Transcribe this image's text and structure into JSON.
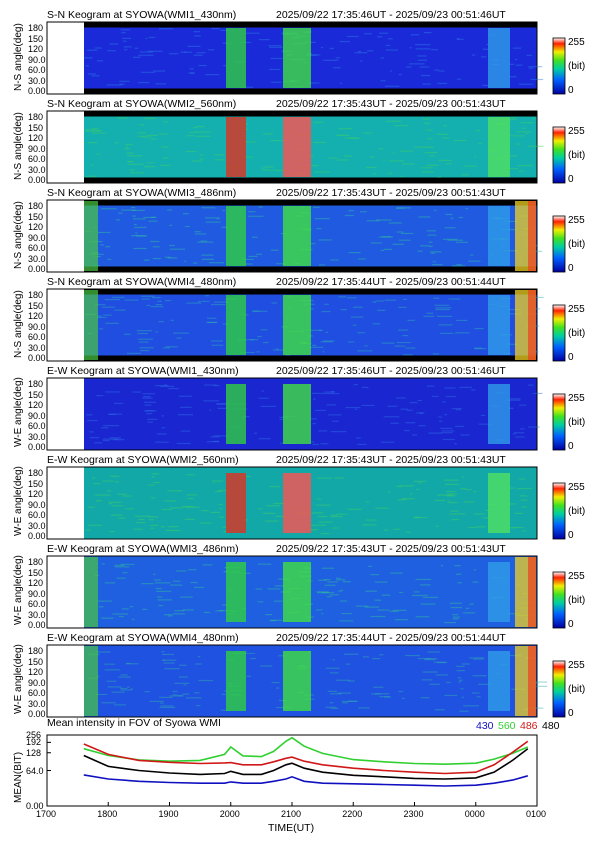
{
  "keograms": [
    {
      "title": "S-N Keogram at SYOWA(WMI1_430nm)",
      "time_range": "2025/09/22 17:35:46UT - 2025/09/23 00:51:46UT",
      "ylabel": "N-S angle(deg)",
      "kind": "NS",
      "base": "#1a2ad8",
      "noise": "#2f7ce8",
      "edge": "none"
    },
    {
      "title": "S-N Keogram at SYOWA(WMI2_560nm)",
      "time_range": "2025/09/22 17:35:43UT - 2025/09/23 00:51:43UT",
      "ylabel": "N-S angle(deg)",
      "kind": "NS",
      "base": "#14b0b0",
      "noise": "#3fd060",
      "edge": "none"
    },
    {
      "title": "S-N Keogram at SYOWA(WMI3_486nm)",
      "time_range": "2025/09/22 17:35:43UT - 2025/09/23 00:51:43UT",
      "ylabel": "N-S angle(deg)",
      "kind": "NS",
      "base": "#1f5ae0",
      "noise": "#30c0a0",
      "edge": "glow"
    },
    {
      "title": "S-N Keogram at SYOWA(WMI4_480nm)",
      "time_range": "2025/09/22 17:35:44UT - 2025/09/23 00:51:44UT",
      "ylabel": "N-S angle(deg)",
      "kind": "NS",
      "base": "#1f4ee0",
      "noise": "#2fb0b8",
      "edge": "glow"
    },
    {
      "title": "E-W Keogram at SYOWA(WMI1_430nm)",
      "time_range": "2025/09/22 17:35:46UT - 2025/09/23 00:51:46UT",
      "ylabel": "W-E angle(deg)",
      "kind": "WE",
      "base": "#1a26d0",
      "noise": "#2f70e8",
      "edge": "none"
    },
    {
      "title": "E-W Keogram at SYOWA(WMI2_560nm)",
      "time_range": "2025/09/22 17:35:43UT - 2025/09/23 00:51:43UT",
      "ylabel": "W-E angle(deg)",
      "kind": "WE",
      "base": "#12a8a8",
      "noise": "#40d060",
      "edge": "none"
    },
    {
      "title": "E-W Keogram at SYOWA(WMI3_486nm)",
      "time_range": "2025/09/22 17:35:43UT - 2025/09/23 00:51:43UT",
      "ylabel": "W-E angle(deg)",
      "kind": "WE",
      "base": "#1f60e0",
      "noise": "#30c098",
      "edge": "glow"
    },
    {
      "title": "E-W Keogram at SYOWA(WMI4_480nm)",
      "time_range": "2025/09/22 17:35:44UT - 2025/09/23 00:51:44UT",
      "ylabel": "W-E angle(deg)",
      "kind": "WE",
      "base": "#1f52e0",
      "noise": "#30b0b0",
      "edge": "glow"
    }
  ],
  "keogram_yticks": [
    "180",
    "150",
    "120",
    "90.0",
    "60.0",
    "30.0",
    "0.00"
  ],
  "colorbar": {
    "max": "255",
    "unit": "(bit)",
    "min": "0"
  },
  "chart_data": {
    "type": "line",
    "title": "Mean intensity in FOV of Syowa WMI",
    "xlabel": "TIME(UT)",
    "ylabel": "MEAN(BIT)",
    "x_ticks": [
      "1700",
      "1800",
      "1900",
      "2000",
      "2100",
      "2200",
      "2300",
      "0000",
      "0100"
    ],
    "y_ticks": [
      "256",
      "192",
      "128",
      "64.0",
      "0.00"
    ],
    "y_scale": "log",
    "xlim": [
      17.0,
      25.0
    ],
    "ylim": [
      0,
      256
    ],
    "x": [
      17.6,
      18.0,
      18.5,
      19.0,
      19.5,
      19.9,
      20.0,
      20.2,
      20.5,
      20.7,
      20.9,
      21.0,
      21.2,
      21.5,
      22.0,
      22.5,
      23.0,
      23.5,
      24.0,
      24.3,
      24.6,
      24.85
    ],
    "series": [
      {
        "name": "430",
        "color": "#1010c0",
        "values": [
          54,
          46,
          42,
          40,
          39,
          39,
          41,
          39,
          39,
          42,
          46,
          50,
          42,
          39,
          38,
          37,
          36,
          35,
          36,
          39,
          44,
          52
        ]
      },
      {
        "name": "560",
        "color": "#30d030",
        "values": [
          150,
          115,
          97,
          92,
          95,
          120,
          160,
          113,
          110,
          135,
          200,
          230,
          165,
          125,
          98,
          90,
          84,
          82,
          85,
          100,
          125,
          160
        ]
      },
      {
        "name": "486",
        "color": "#d01818",
        "values": [
          180,
          120,
          95,
          88,
          84,
          86,
          87,
          80,
          80,
          90,
          103,
          108,
          92,
          80,
          70,
          64,
          60,
          57,
          60,
          80,
          130,
          200
        ]
      },
      {
        "name": "480",
        "color": "#000000",
        "values": [
          115,
          75,
          64,
          58,
          55,
          57,
          62,
          55,
          55,
          64,
          80,
          85,
          70,
          60,
          53,
          50,
          47,
          46,
          48,
          60,
          95,
          150
        ]
      }
    ]
  }
}
